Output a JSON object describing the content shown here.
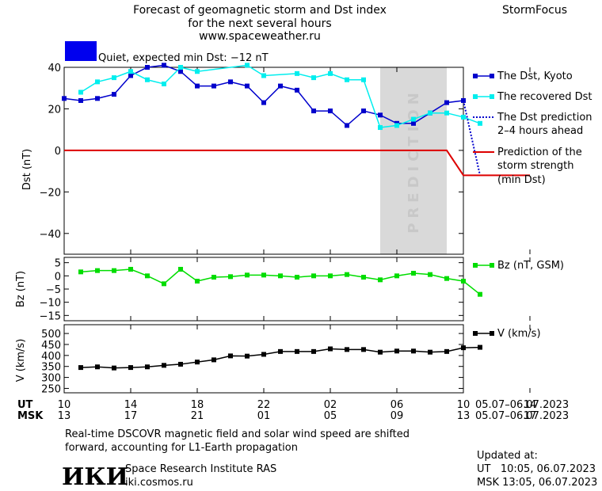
{
  "header": {
    "title_line1": "Forecast of geomagnetic storm and Dst index",
    "title_line2": "for the next several hours",
    "title_line3": "www.spaceweather.ru",
    "brand": "StormFocus",
    "status_text": "Quiet, expected min Dst: −12 nT",
    "status_color": "#0000ee"
  },
  "prediction_label": "PREDICTION",
  "legend": {
    "dst_kyoto": "The Dst, Kyoto",
    "dst_recovered": "The recovered Dst",
    "dst_prediction_1": "The Dst prediction",
    "dst_prediction_2": "2–4 hours ahead",
    "storm_1": "Prediction of the",
    "storm_2": "storm strength",
    "storm_3": "(min Dst)",
    "bz": "Bz (nT, GSM)",
    "v": "V (km/s)"
  },
  "time_axis": {
    "ut_label": "UT",
    "msk_label": "MSK",
    "ut_ticks": [
      "10",
      "14",
      "18",
      "22",
      "02",
      "06",
      "10",
      "14"
    ],
    "msk_ticks": [
      "13",
      "17",
      "21",
      "01",
      "05",
      "09",
      "13",
      "17"
    ],
    "date_range_1": "05.07–06.07.2023",
    "date_range_2": "05.07–06.07.2023"
  },
  "footer": {
    "note_line1": "Real-time DSCOVR magnetic field and solar wind speed are shifted",
    "note_line2": "forward, accounting for L1-Earth propagation",
    "logo": "ИКИ",
    "institute": "Space Research Institute RAS",
    "site": "iki.cosmos.ru",
    "updated_label": "Updated at:",
    "updated_ut": "UT   10:05, 06.07.2023",
    "updated_msk": "MSK 13:05, 06.07.2023"
  },
  "colors": {
    "kyoto": "#0000cc",
    "recovered": "#00eeee",
    "dst_prediction": "#0000cc",
    "storm": "#dd0000",
    "bz": "#00dd00",
    "v": "#000000",
    "prediction_band": "#d9d9d9"
  },
  "chart_data": [
    {
      "type": "line",
      "ylabel": "Dst (nT)",
      "ylim": [
        -50,
        40
      ],
      "yticks": [
        40,
        20,
        0,
        -20,
        -40
      ],
      "xlim": [
        10,
        34
      ],
      "prediction_band": [
        29,
        33
      ],
      "series": [
        {
          "name": "The Dst, Kyoto",
          "points": [
            [
              10,
              25
            ],
            [
              11,
              24
            ],
            [
              12,
              25
            ],
            [
              13,
              27
            ],
            [
              14,
              36
            ],
            [
              15,
              40
            ],
            [
              16,
              41
            ],
            [
              17,
              38
            ],
            [
              18,
              31
            ],
            [
              19,
              31
            ],
            [
              20,
              33
            ],
            [
              21,
              31
            ],
            [
              22,
              23
            ],
            [
              23,
              31
            ],
            [
              24,
              29
            ],
            [
              25,
              19
            ],
            [
              26,
              19
            ],
            [
              27,
              12
            ],
            [
              28,
              19
            ],
            [
              29,
              17
            ],
            [
              30,
              13
            ],
            [
              31,
              13
            ],
            [
              32,
              18
            ],
            [
              33,
              23
            ],
            [
              34,
              24
            ]
          ]
        },
        {
          "name": "The recovered Dst",
          "points": [
            [
              11,
              28
            ],
            [
              12,
              33
            ],
            [
              13,
              35
            ],
            [
              14,
              38
            ],
            [
              15,
              34
            ],
            [
              16,
              32
            ],
            [
              17,
              40
            ],
            [
              18,
              38
            ],
            [
              21,
              41
            ],
            [
              22,
              36
            ],
            [
              24,
              37
            ],
            [
              25,
              35
            ],
            [
              26,
              37
            ],
            [
              27,
              34
            ],
            [
              28,
              34
            ],
            [
              29,
              11
            ],
            [
              30,
              12
            ],
            [
              31,
              15
            ],
            [
              32,
              18
            ],
            [
              33,
              18
            ],
            [
              34,
              16
            ],
            [
              35,
              13
            ]
          ]
        },
        {
          "name": "The Dst prediction",
          "points": [
            [
              34,
              24
            ],
            [
              35,
              -12
            ]
          ]
        },
        {
          "name": "Prediction of the storm strength (min Dst)",
          "points": [
            [
              10,
              0
            ],
            [
              33,
              0
            ],
            [
              34,
              -12
            ],
            [
              38,
              -12
            ]
          ]
        }
      ]
    },
    {
      "type": "line",
      "ylabel": "Bz (nT)",
      "ylim": [
        -17,
        7
      ],
      "yticks": [
        5,
        0,
        -5,
        -10,
        -15
      ],
      "series": [
        {
          "name": "Bz (nT, GSM)",
          "points": [
            [
              11,
              1.5
            ],
            [
              12,
              2
            ],
            [
              13,
              2
            ],
            [
              14,
              2.5
            ],
            [
              15,
              0
            ],
            [
              16,
              -3
            ],
            [
              17,
              2.5
            ],
            [
              18,
              -2
            ],
            [
              19,
              -0.5
            ],
            [
              20,
              -0.3
            ],
            [
              21,
              0.3
            ],
            [
              22,
              0.3
            ],
            [
              23,
              0
            ],
            [
              24,
              -0.5
            ],
            [
              25,
              0
            ],
            [
              26,
              0
            ],
            [
              27,
              0.5
            ],
            [
              28,
              -0.5
            ],
            [
              29,
              -1.5
            ],
            [
              30,
              0
            ],
            [
              31,
              1
            ],
            [
              32,
              0.5
            ],
            [
              33,
              -1
            ],
            [
              34,
              -2
            ],
            [
              35,
              -7
            ]
          ]
        }
      ]
    },
    {
      "type": "line",
      "ylabel": "V (km/s)",
      "ylim": [
        230,
        540
      ],
      "yticks": [
        500,
        450,
        400,
        350,
        300,
        250
      ],
      "series": [
        {
          "name": "V (km/s)",
          "points": [
            [
              11,
              345
            ],
            [
              12,
              348
            ],
            [
              13,
              343
            ],
            [
              14,
              345
            ],
            [
              15,
              348
            ],
            [
              16,
              355
            ],
            [
              17,
              360
            ],
            [
              18,
              370
            ],
            [
              19,
              380
            ],
            [
              20,
              398
            ],
            [
              21,
              397
            ],
            [
              22,
              405
            ],
            [
              23,
              418
            ],
            [
              24,
              418
            ],
            [
              25,
              418
            ],
            [
              26,
              430
            ],
            [
              27,
              427
            ],
            [
              28,
              427
            ],
            [
              29,
              415
            ],
            [
              30,
              420
            ],
            [
              31,
              420
            ],
            [
              32,
              415
            ],
            [
              33,
              418
            ],
            [
              34,
              435
            ],
            [
              35,
              437
            ]
          ]
        }
      ]
    }
  ]
}
